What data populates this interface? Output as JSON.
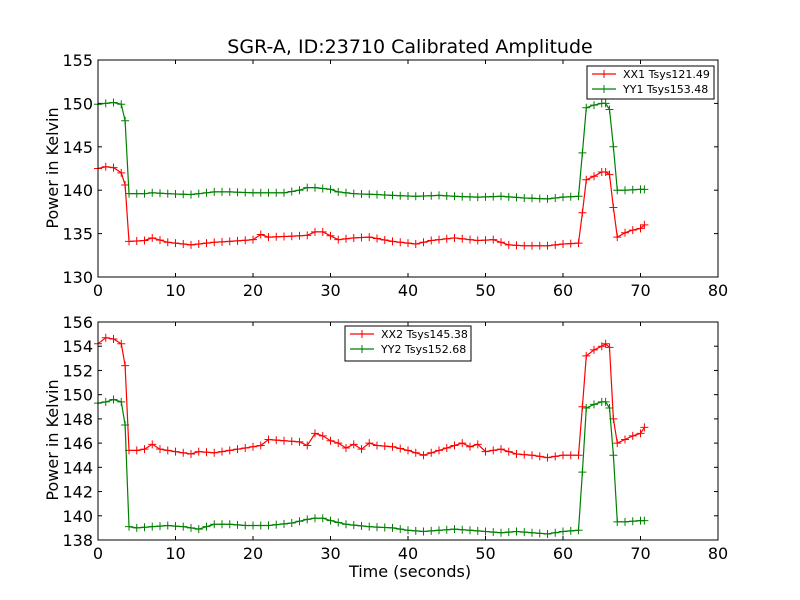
{
  "chart_data": [
    {
      "type": "line",
      "title": "SGR-A, ID:23710 Calibrated Amplitude",
      "xlabel": "",
      "ylabel": "Power in Kelvin",
      "xlim": [
        0,
        80
      ],
      "ylim": [
        130,
        155
      ],
      "xticks": [
        0,
        10,
        20,
        30,
        40,
        50,
        60,
        70,
        80
      ],
      "yticks": [
        130,
        135,
        140,
        145,
        150,
        155
      ],
      "grid": false,
      "legend_position": "upper-right",
      "series": [
        {
          "name": "XX1 Tsys121.49",
          "color": "#ff0000",
          "marker": "+",
          "x": [
            0,
            1,
            2,
            3,
            3.5,
            4,
            6,
            7,
            9,
            12,
            15,
            17,
            20,
            21,
            22,
            25,
            27,
            28,
            29,
            31,
            33,
            35,
            38,
            41,
            43,
            46,
            49,
            51,
            53,
            55,
            58,
            60,
            62,
            62.5,
            63,
            64,
            65,
            65.5,
            66,
            66.5,
            67,
            68,
            69,
            70,
            70.5
          ],
          "y": [
            142.5,
            142.7,
            142.6,
            142.0,
            140.6,
            134.1,
            134.2,
            134.5,
            134.0,
            133.7,
            134.0,
            134.1,
            134.3,
            134.9,
            134.6,
            134.7,
            134.8,
            135.2,
            135.2,
            134.3,
            134.5,
            134.6,
            134.1,
            133.8,
            134.2,
            134.5,
            134.2,
            134.3,
            133.7,
            133.6,
            133.6,
            133.8,
            133.9,
            137.4,
            141.2,
            141.6,
            142.1,
            142.1,
            141.8,
            138.0,
            134.6,
            135.1,
            135.4,
            135.6,
            136.0
          ]
        },
        {
          "name": "YY1 Tsys153.48",
          "color": "#008000",
          "marker": "+",
          "x": [
            0,
            1,
            2,
            3,
            3.5,
            4,
            6,
            7,
            9,
            12,
            15,
            17,
            20,
            24,
            26,
            27,
            28,
            30,
            31,
            33,
            36,
            38,
            41,
            44,
            46,
            49,
            52,
            55,
            58,
            60,
            62,
            62.5,
            63,
            64,
            65,
            65.5,
            66,
            66.5,
            67,
            68,
            70,
            70.5
          ],
          "y": [
            149.9,
            150.0,
            150.1,
            149.9,
            148.0,
            139.6,
            139.6,
            139.7,
            139.6,
            139.5,
            139.8,
            139.8,
            139.7,
            139.7,
            140.0,
            140.3,
            140.3,
            140.1,
            139.8,
            139.6,
            139.5,
            139.4,
            139.3,
            139.4,
            139.3,
            139.2,
            139.3,
            139.1,
            139.0,
            139.2,
            139.3,
            144.3,
            149.5,
            149.8,
            150.0,
            150.0,
            149.3,
            145.0,
            140.0,
            140.0,
            140.1,
            140.1
          ]
        }
      ]
    },
    {
      "type": "line",
      "title": "",
      "xlabel": "Time (seconds)",
      "ylabel": "Power in Kelvin",
      "xlim": [
        0,
        80
      ],
      "ylim": [
        138,
        156
      ],
      "xticks": [
        0,
        10,
        20,
        30,
        40,
        50,
        60,
        70,
        80
      ],
      "yticks": [
        138,
        140,
        142,
        144,
        146,
        148,
        150,
        152,
        154,
        156
      ],
      "grid": false,
      "legend_position": "upper-center",
      "series": [
        {
          "name": "XX2 Tsys145.38",
          "color": "#ff0000",
          "marker": "+",
          "x": [
            0,
            1,
            2,
            3,
            3.5,
            4,
            5,
            6,
            7,
            8,
            10,
            12,
            13,
            15,
            17,
            19,
            21,
            22,
            24,
            26,
            27,
            28,
            29,
            30,
            31,
            32,
            33,
            34,
            35,
            36,
            38,
            40,
            42,
            44,
            46,
            47,
            48,
            49,
            50,
            52,
            54,
            56,
            58,
            60,
            62,
            62.5,
            63,
            64,
            65,
            65.5,
            66,
            66.5,
            67,
            68,
            69,
            70,
            70.5
          ],
          "y": [
            154.2,
            154.7,
            154.6,
            154.2,
            152.4,
            145.4,
            145.4,
            145.5,
            145.9,
            145.5,
            145.3,
            145.1,
            145.3,
            145.2,
            145.4,
            145.6,
            145.8,
            146.3,
            146.2,
            146.1,
            145.8,
            146.8,
            146.6,
            146.2,
            146.0,
            145.6,
            145.9,
            145.5,
            146.0,
            145.8,
            145.7,
            145.4,
            145.0,
            145.4,
            145.8,
            146.0,
            145.7,
            145.9,
            145.3,
            145.5,
            145.1,
            145.0,
            144.8,
            145.0,
            145.0,
            149.0,
            153.2,
            153.7,
            154.0,
            154.2,
            153.9,
            148.0,
            146.0,
            146.3,
            146.6,
            146.8,
            147.3
          ]
        },
        {
          "name": "YY2 Tsys152.68",
          "color": "#008000",
          "marker": "+",
          "x": [
            0,
            1,
            2,
            3,
            3.5,
            4,
            5,
            7,
            9,
            11,
            13,
            15,
            17,
            19,
            22,
            25,
            27,
            28,
            29,
            30,
            32,
            35,
            38,
            40,
            42,
            44,
            46,
            48,
            50,
            52,
            54,
            56,
            58,
            60,
            62,
            62.5,
            63,
            64,
            65,
            65.5,
            66,
            66.5,
            67,
            68,
            70,
            70.5
          ],
          "y": [
            149.3,
            149.4,
            149.6,
            149.4,
            147.5,
            139.1,
            139.0,
            139.1,
            139.2,
            139.1,
            138.9,
            139.3,
            139.3,
            139.2,
            139.2,
            139.4,
            139.7,
            139.8,
            139.8,
            139.6,
            139.3,
            139.1,
            139.0,
            138.8,
            138.7,
            138.8,
            138.9,
            138.8,
            138.7,
            138.6,
            138.7,
            138.6,
            138.5,
            138.7,
            138.8,
            143.6,
            148.9,
            149.2,
            149.4,
            149.4,
            148.9,
            145.0,
            139.5,
            139.5,
            139.6,
            139.6
          ]
        }
      ]
    }
  ]
}
